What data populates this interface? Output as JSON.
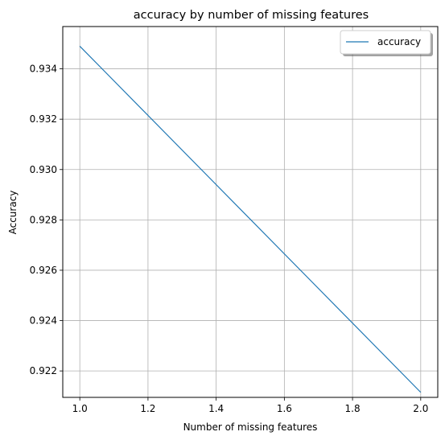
{
  "chart_data": {
    "type": "line",
    "title": "accuracy by number of missing features",
    "xlabel": "Number of missing features",
    "ylabel": "Accuracy",
    "xlim": [
      0.95,
      2.05
    ],
    "ylim": [
      0.92095,
      0.93568
    ],
    "xticks": [
      1.0,
      1.2,
      1.4,
      1.6,
      1.8,
      2.0
    ],
    "xtick_labels": [
      "1.0",
      "1.2",
      "1.4",
      "1.6",
      "1.8",
      "2.0"
    ],
    "yticks": [
      0.922,
      0.924,
      0.926,
      0.928,
      0.93,
      0.932,
      0.934
    ],
    "ytick_labels": [
      "0.922",
      "0.924",
      "0.926",
      "0.928",
      "0.930",
      "0.932",
      "0.934"
    ],
    "grid": true,
    "legend_position": "top-right",
    "series": [
      {
        "name": "accuracy",
        "color": "#1f77b4",
        "x": [
          1.0,
          2.0
        ],
        "y": [
          0.9349,
          0.92115
        ]
      }
    ]
  }
}
